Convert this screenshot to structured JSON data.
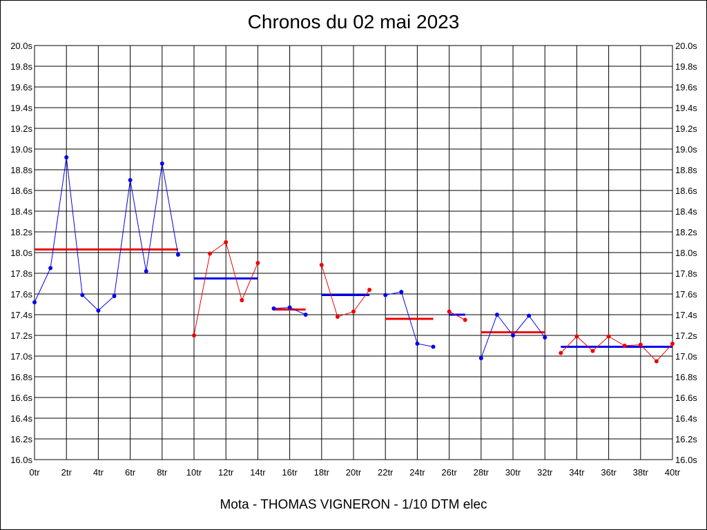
{
  "chart_data": {
    "type": "line",
    "title": "Chronos du 02 mai 2023",
    "footer": "Mota - THOMAS VIGNERON - 1/10 DTM elec",
    "ylim": [
      16.0,
      20.0
    ],
    "xlim": [
      0,
      40
    ],
    "yticks": [
      "16.0s",
      "16.2s",
      "16.4s",
      "16.6s",
      "16.8s",
      "17.0s",
      "17.2s",
      "17.4s",
      "17.6s",
      "17.8s",
      "18.0s",
      "18.2s",
      "18.4s",
      "18.6s",
      "18.8s",
      "19.0s",
      "19.2s",
      "19.4s",
      "19.6s",
      "19.8s",
      "20.0s"
    ],
    "xticks": [
      "0tr",
      "2tr",
      "4tr",
      "6tr",
      "8tr",
      "10tr",
      "12tr",
      "14tr",
      "16tr",
      "18tr",
      "20tr",
      "22tr",
      "24tr",
      "26tr",
      "28tr",
      "30tr",
      "32tr",
      "34tr",
      "36tr",
      "38tr",
      "40tr"
    ],
    "grid": true,
    "colors": {
      "blue": "#0000ee",
      "red": "#ee0000"
    },
    "series": [
      {
        "color": "blue",
        "x": [
          0,
          1,
          2,
          3,
          4,
          5,
          6,
          7,
          8,
          9
        ],
        "y": [
          17.52,
          17.85,
          18.92,
          17.59,
          17.44,
          17.58,
          18.7,
          17.82,
          18.86,
          17.98
        ]
      },
      {
        "color": "red",
        "x": [
          10,
          11,
          12,
          13,
          14
        ],
        "y": [
          17.2,
          17.99,
          18.1,
          17.54,
          17.9
        ]
      },
      {
        "color": "blue",
        "x": [
          15,
          16,
          17
        ],
        "y": [
          17.46,
          17.47,
          17.4
        ]
      },
      {
        "color": "red",
        "x": [
          18,
          19,
          20,
          21
        ],
        "y": [
          17.88,
          17.38,
          17.43,
          17.64
        ]
      },
      {
        "color": "blue",
        "x": [
          22,
          23,
          24,
          25
        ],
        "y": [
          17.59,
          17.62,
          17.12,
          17.09
        ]
      },
      {
        "color": "red",
        "x": [
          26,
          27
        ],
        "y": [
          17.43,
          17.35
        ]
      },
      {
        "color": "blue",
        "x": [
          28,
          29,
          30,
          31,
          32
        ],
        "y": [
          16.98,
          17.4,
          17.2,
          17.39,
          17.18
        ]
      },
      {
        "color": "red",
        "x": [
          33,
          34,
          35,
          36,
          37,
          38,
          39,
          40
        ],
        "y": [
          17.03,
          17.19,
          17.05,
          17.19,
          17.1,
          17.11,
          16.95,
          17.12
        ]
      }
    ],
    "averages": [
      {
        "color": "red",
        "x": [
          0,
          9
        ],
        "y": 18.03
      },
      {
        "color": "blue",
        "x": [
          10,
          14
        ],
        "y": 17.75
      },
      {
        "color": "red",
        "x": [
          15,
          17
        ],
        "y": 17.45
      },
      {
        "color": "blue",
        "x": [
          18,
          21
        ],
        "y": 17.59
      },
      {
        "color": "red",
        "x": [
          22,
          25
        ],
        "y": 17.36
      },
      {
        "color": "blue",
        "x": [
          26,
          27
        ],
        "y": 17.4
      },
      {
        "color": "red",
        "x": [
          28,
          32
        ],
        "y": 17.23
      },
      {
        "color": "blue",
        "x": [
          33,
          40
        ],
        "y": 17.09
      }
    ]
  }
}
